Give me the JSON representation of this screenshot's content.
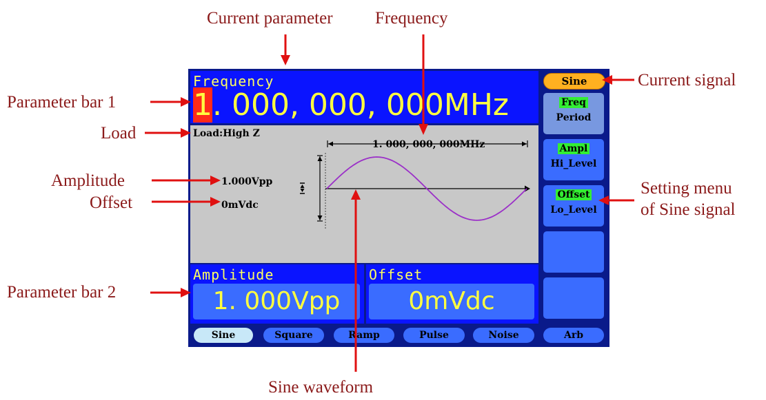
{
  "annotations": {
    "current_parameter": "Current parameter",
    "frequency": "Frequency",
    "current_signal": "Current signal",
    "parameter_bar_1": "Parameter bar 1",
    "load": "Load",
    "amplitude": "Amplitude",
    "offset": "Offset",
    "setting_menu_line1": "Setting menu",
    "setting_menu_line2": "of Sine signal",
    "parameter_bar_2": "Parameter bar 2",
    "sine_waveform": "Sine waveform"
  },
  "parameter_bar_1": {
    "title": "Frequency",
    "cursor_digit": "1",
    "value_rest": ". 000, 000, 000MHz"
  },
  "waveform_area": {
    "load": "Load:High Z",
    "frequency_label": "1. 000, 000, 000MHz",
    "amplitude": "1.000Vpp",
    "offset": "0mVdc"
  },
  "parameter_bar_2": {
    "amplitude_title": "Amplitude",
    "amplitude_value": "1. 000Vpp",
    "offset_title": "Offset",
    "offset_value": "0mVdc"
  },
  "menu": {
    "current_signal": "Sine",
    "freq": "Freq",
    "period": "Period",
    "ampl": "Ampl",
    "hi_level": "Hi_Level",
    "offset": "Offset",
    "lo_level": "Lo_Level"
  },
  "tabs": [
    "Sine",
    "Square",
    "Ramp",
    "Pulse",
    "Noise",
    "Arb"
  ],
  "colors": {
    "annotation": "#8b1a1a",
    "arrow": "#e01010",
    "screen_bg": "#0a1a8a",
    "param_bar": "#0a14ff",
    "value_text": "#ffff40",
    "cursor": "#ff2a1a",
    "highlight": "#33ee33",
    "sine_wave": "#9b30c8",
    "current_signal_button": "#ffb020"
  }
}
